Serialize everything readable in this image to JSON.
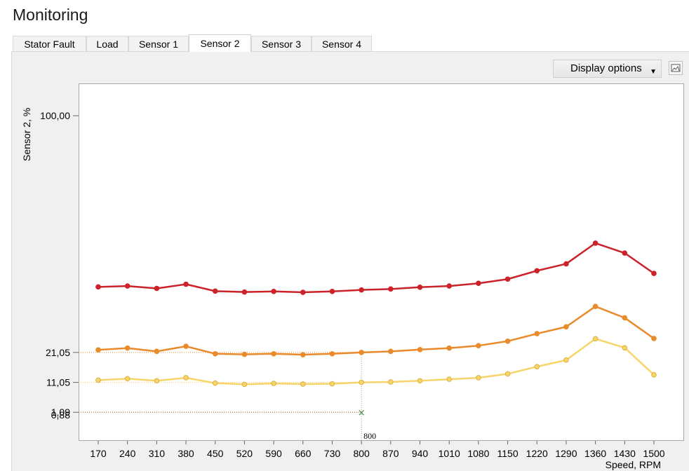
{
  "header": {
    "title": "Monitoring"
  },
  "tabs": [
    {
      "label": "Stator Fault",
      "active": false
    },
    {
      "label": "Load",
      "active": false
    },
    {
      "label": "Sensor 1",
      "active": false
    },
    {
      "label": "Sensor 2",
      "active": true
    },
    {
      "label": "Sensor 3",
      "active": false
    },
    {
      "label": "Sensor 4",
      "active": false
    }
  ],
  "toolbar": {
    "display_options_label": "Display options",
    "save_image_icon": "image-icon"
  },
  "cursor": {
    "x_label": "800",
    "y_label": "1,09",
    "y_label_overlap": "0,88",
    "marker_icon": "cross-icon"
  },
  "chart_data": {
    "type": "line",
    "ylabel": "Sensor 2, %",
    "xlabel": "Speed, RPM",
    "x": [
      170,
      240,
      310,
      380,
      450,
      520,
      590,
      660,
      730,
      800,
      870,
      940,
      1010,
      1080,
      1150,
      1220,
      1290,
      1360,
      1430,
      1500
    ],
    "y_tick_labels": [
      "100,00",
      "21,05",
      "11,05",
      "1,09"
    ],
    "series": [
      {
        "color": "#cc2229",
        "values": [
          42.9,
          43.2,
          42.4,
          43.8,
          41.5,
          41.2,
          41.4,
          41.1,
          41.4,
          41.9,
          42.2,
          42.8,
          43.2,
          44.1,
          45.5,
          48.3,
          50.6,
          57.5,
          54.2,
          47.4
        ]
      },
      {
        "color": "#e98a2b",
        "values": [
          21.9,
          22.5,
          21.4,
          23.1,
          20.6,
          20.4,
          20.6,
          20.3,
          20.6,
          21.05,
          21.4,
          22.0,
          22.5,
          23.3,
          24.8,
          27.3,
          29.6,
          36.4,
          32.6,
          25.7
        ]
      },
      {
        "color": "#f7d56b",
        "values": [
          11.8,
          12.3,
          11.6,
          12.6,
          10.8,
          10.4,
          10.7,
          10.5,
          10.6,
          11.05,
          11.2,
          11.6,
          12.1,
          12.6,
          13.9,
          16.3,
          18.5,
          25.6,
          22.6,
          13.6
        ]
      }
    ],
    "ylim": [
      -1.2,
      104
    ],
    "grid": false
  }
}
